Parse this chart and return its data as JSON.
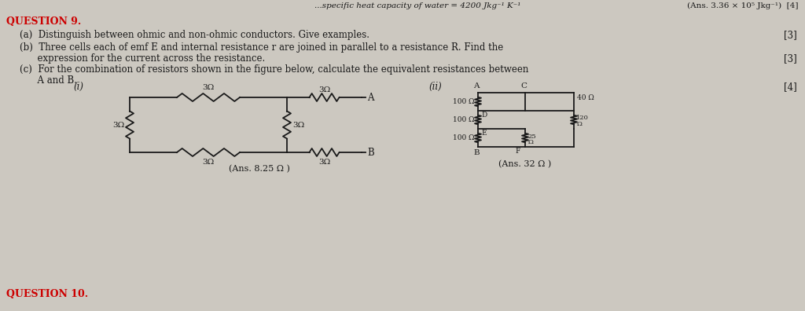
{
  "bg_color": "#ccc8c0",
  "text_color": "#1a1a1a",
  "red_color": "#cc0000",
  "title_top": "...specific heat capacity of water = 4200 Jkg⁻¹ K⁻¹",
  "ans_top_right": "(Ans. 3.36 × 10⁵ Jkg⁻¹)  [4]",
  "question_label": "QUESTION 9.",
  "part_a": "(a)  Distinguish between ohmic and non-ohmic conductors. Give examples.",
  "part_a_mark": "[3]",
  "part_b_line1": "(b)  Three cells each of emf E and internal resistance r are joined in parallel to a resistance R. Find the",
  "part_b_line2": "      expression for the current across the resistance.",
  "part_b_mark": "[3]",
  "part_c_line1": "(c)  For the combination of resistors shown in the figure below, calculate the equivalent resistances between",
  "part_c_line2": "      A and B.",
  "label_i": "(i)",
  "label_ii": "(ii)",
  "mark_4": "[4]",
  "ans_i": "(Ans. 8.25 Ω )",
  "ans_ii": "(Ans. 32 Ω )",
  "q10_label": "QUESTION 10."
}
